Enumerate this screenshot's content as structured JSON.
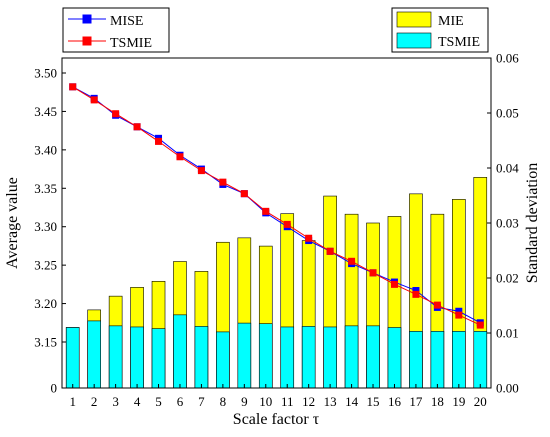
{
  "chart_data": {
    "type": "bar+line",
    "xlabel": "Scale factor τ",
    "ylabel_left": "Average value",
    "ylabel_right": "Standard deviation",
    "categories": [
      "1",
      "2",
      "3",
      "4",
      "5",
      "6",
      "7",
      "8",
      "9",
      "10",
      "11",
      "12",
      "13",
      "14",
      "15",
      "16",
      "17",
      "18",
      "19",
      "20"
    ],
    "left_axis": {
      "ticks": [
        3.15,
        3.2,
        3.25,
        3.3,
        3.35,
        3.4,
        3.45,
        3.5
      ],
      "tick_labels": [
        "3.15",
        "3.20",
        "3.25",
        "3.30",
        "3.35",
        "3.40",
        "3.45",
        "3.50"
      ],
      "bottom_label": "0"
    },
    "right_axis": {
      "ylim": [
        0,
        0.06
      ],
      "ticks": [
        0,
        0.01,
        0.02,
        0.03,
        0.04,
        0.05,
        0.06
      ],
      "tick_labels": [
        "0.00",
        "0.01",
        "0.02",
        "0.03",
        "0.04",
        "0.05",
        "0.06"
      ]
    },
    "bar_series": [
      {
        "name": "MIE",
        "color": "#ffff00",
        "values": [
          0.011,
          0.0142,
          0.0167,
          0.0183,
          0.0194,
          0.023,
          0.0212,
          0.0265,
          0.0273,
          0.0258,
          0.0317,
          0.0268,
          0.0349,
          0.0316,
          0.03,
          0.0312,
          0.0353,
          0.0316,
          0.0343,
          0.0383
        ]
      },
      {
        "name": "TSMIE",
        "color": "#00ffff",
        "values": [
          0.011,
          0.0122,
          0.0113,
          0.0111,
          0.0108,
          0.0133,
          0.0112,
          0.0102,
          0.0118,
          0.0117,
          0.0111,
          0.0112,
          0.0111,
          0.0113,
          0.0113,
          0.011,
          0.0103,
          0.0103,
          0.0103,
          0.0103
        ]
      }
    ],
    "line_series": [
      {
        "name": "MISE",
        "color": "#0000ff",
        "marker": "square",
        "values": [
          3.482,
          3.467,
          3.445,
          3.43,
          3.415,
          3.393,
          3.375,
          3.355,
          3.343,
          3.318,
          3.3,
          3.282,
          3.268,
          3.252,
          3.24,
          3.228,
          3.217,
          3.195,
          3.19,
          3.175
        ]
      },
      {
        "name": "TSMIE",
        "color": "#ff0000",
        "marker": "square",
        "values": [
          3.482,
          3.465,
          3.447,
          3.43,
          3.411,
          3.391,
          3.373,
          3.358,
          3.343,
          3.32,
          3.303,
          3.285,
          3.268,
          3.255,
          3.24,
          3.225,
          3.212,
          3.198,
          3.185,
          3.172
        ]
      }
    ],
    "legend_lines_position": "top-left",
    "legend_bars_position": "top-right",
    "grid": false
  }
}
